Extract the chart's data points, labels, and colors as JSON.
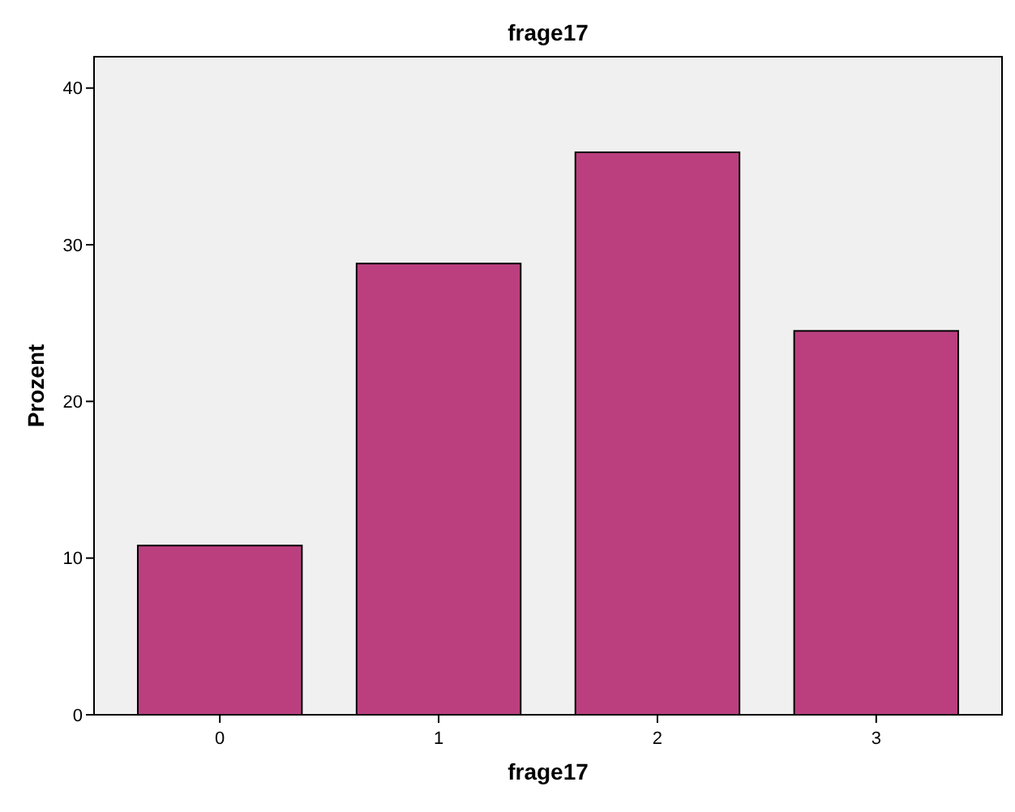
{
  "chart_data": {
    "type": "bar",
    "title": "frage17",
    "xlabel": "frage17",
    "ylabel": "Prozent",
    "categories": [
      "0",
      "1",
      "2",
      "3"
    ],
    "values": [
      10.8,
      28.8,
      35.9,
      24.5
    ],
    "color": "#bb3f7f",
    "ylim": [
      0,
      42
    ],
    "yticks": [
      0,
      10,
      20,
      30,
      40
    ],
    "grid": false
  }
}
